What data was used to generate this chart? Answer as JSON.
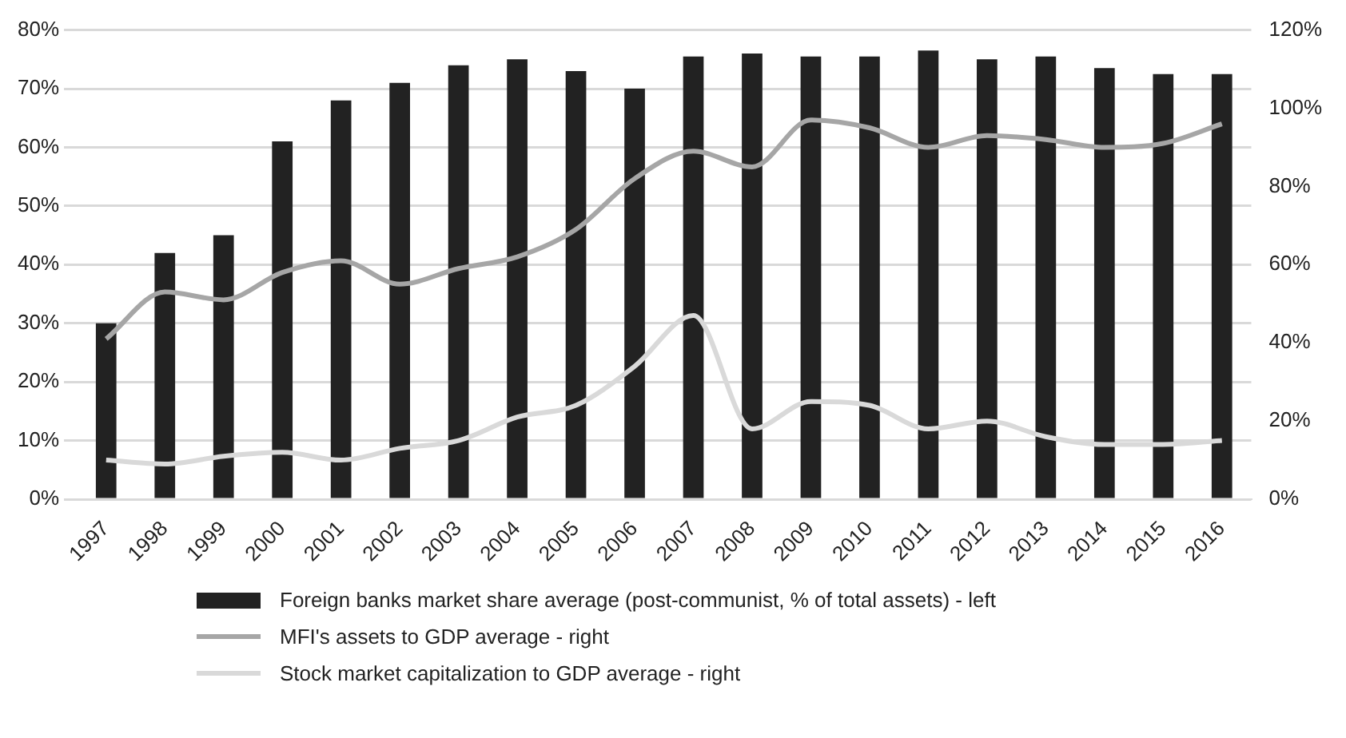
{
  "chart_data": {
    "type": "bar",
    "categories": [
      "1997",
      "1998",
      "1999",
      "2000",
      "2001",
      "2002",
      "2003",
      "2004",
      "2005",
      "2006",
      "2007",
      "2008",
      "2009",
      "2010",
      "2011",
      "2012",
      "2013",
      "2014",
      "2015",
      "2016"
    ],
    "series": [
      {
        "name": "Foreign banks market share average (post-communist, % of total assets) - left",
        "color": "#222222",
        "values": [
          30,
          42,
          45,
          61,
          68,
          71,
          74,
          75,
          73,
          70,
          75.5,
          76,
          75.5,
          75.5,
          76.5,
          75,
          75.5,
          73.5,
          72.5,
          72.5
        ]
      },
      {
        "name": "MFI's assets to GDP average - right",
        "type": "line",
        "axis": "y2",
        "color": "#a6a6a6",
        "values": [
          41,
          53,
          51,
          58,
          61,
          55,
          59,
          62,
          69,
          82,
          89,
          85,
          97,
          95,
          90,
          93,
          92,
          90,
          91,
          96
        ]
      },
      {
        "name": "Stock market capitalization to GDP average - right",
        "type": "line",
        "axis": "y2",
        "color": "#d9d9d9",
        "values": [
          10,
          9,
          11,
          12,
          10,
          13,
          15,
          21,
          24,
          34,
          47,
          18,
          25,
          24,
          18,
          20,
          16,
          14,
          14,
          15
        ]
      }
    ],
    "ylim": [
      0,
      80
    ],
    "yticks": [
      {
        "value": 0,
        "label": "0%"
      },
      {
        "value": 10,
        "label": "10%"
      },
      {
        "value": 20,
        "label": "20%"
      },
      {
        "value": 30,
        "label": "30%"
      },
      {
        "value": 40,
        "label": "40%"
      },
      {
        "value": 50,
        "label": "50%"
      },
      {
        "value": 60,
        "label": "60%"
      },
      {
        "value": 70,
        "label": "70%"
      },
      {
        "value": 80,
        "label": "80%"
      }
    ],
    "y2lim": [
      0,
      120
    ],
    "y2ticks": [
      {
        "value": 0,
        "label": "0%"
      },
      {
        "value": 20,
        "label": "20%"
      },
      {
        "value": 40,
        "label": "40%"
      },
      {
        "value": 60,
        "label": "60%"
      },
      {
        "value": 80,
        "label": "80%"
      },
      {
        "value": 100,
        "label": "100%"
      },
      {
        "value": 120,
        "label": "120%"
      }
    ],
    "grid": "y",
    "legend": "bottom",
    "marker": "none",
    "line_style": "solid"
  }
}
